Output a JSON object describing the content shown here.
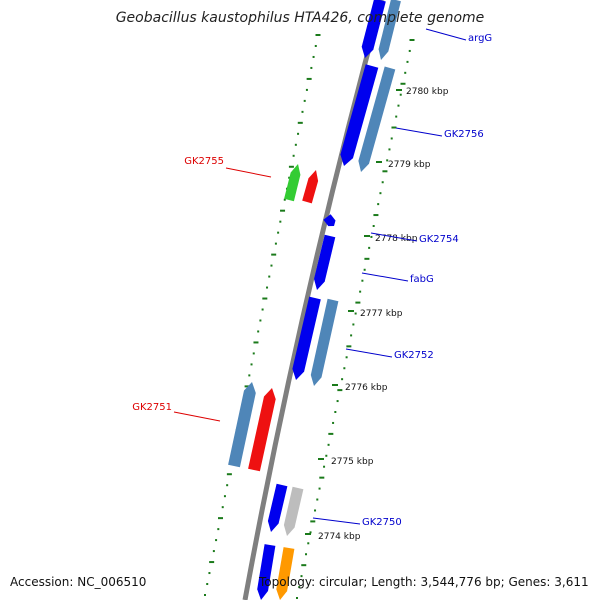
{
  "title": "Geobacillus kaustophilus HTA426, complete genome",
  "footer": {
    "accession": "Accession: NC_006510",
    "summary": "Topology: circular; Length: 3,544,776 bp; Genes: 3,611"
  },
  "colors": {
    "backbone": "#7f7f7f",
    "forward_gene": "#0000ee",
    "steel_gene": "#4f86b8",
    "rna_green": "#33cc33",
    "rna_red": "#ee1111",
    "grey_gene": "#bdbdbd",
    "orange_gene": "#ff9900",
    "gc_ticks": "#1a7a1a",
    "label_blue": "#0000cc",
    "label_red": "#dd0000"
  },
  "kbp_labels": [
    "2780 kbp",
    "2779 kbp",
    "2778 kbp",
    "2777 kbp",
    "2776 kbp",
    "2775 kbp",
    "2774 kbp"
  ],
  "gene_labels": [
    {
      "text": "argG",
      "strand": "plus",
      "color": "blue"
    },
    {
      "text": "GK2756",
      "strand": "plus",
      "color": "blue"
    },
    {
      "text": "GK2755",
      "strand": "minus",
      "color": "red"
    },
    {
      "text": "GK2754",
      "strand": "plus",
      "color": "blue"
    },
    {
      "text": "fabG",
      "strand": "plus",
      "color": "blue"
    },
    {
      "text": "GK2752",
      "strand": "plus",
      "color": "blue"
    },
    {
      "text": "GK2751",
      "strand": "minus",
      "color": "red"
    },
    {
      "text": "GK2750",
      "strand": "plus",
      "color": "blue"
    }
  ]
}
